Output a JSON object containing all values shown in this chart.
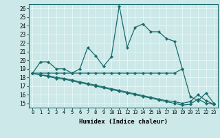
{
  "xlabel": "Humidex (Indice chaleur)",
  "xlim": [
    -0.5,
    23.5
  ],
  "ylim": [
    14.5,
    26.5
  ],
  "yticks": [
    15,
    16,
    17,
    18,
    19,
    20,
    21,
    22,
    23,
    24,
    25,
    26
  ],
  "xticks": [
    0,
    1,
    2,
    3,
    4,
    5,
    6,
    7,
    8,
    9,
    10,
    11,
    12,
    13,
    14,
    15,
    16,
    17,
    18,
    19,
    20,
    21,
    22,
    23
  ],
  "background_color": "#cce8e8",
  "grid_color": "#e8f8f8",
  "line_color": "#1a6b6b",
  "line1_x": [
    0,
    1,
    2,
    3,
    4,
    5,
    6,
    7,
    8,
    9,
    10,
    11,
    12,
    13,
    14,
    15,
    16,
    17,
    18,
    19
  ],
  "line1_y": [
    18.5,
    19.8,
    19.8,
    19.0,
    19.0,
    18.5,
    19.0,
    21.5,
    20.5,
    19.3,
    20.4,
    26.3,
    21.5,
    23.8,
    24.2,
    23.3,
    23.3,
    22.5,
    22.2,
    19.0
  ],
  "line2_x": [
    0,
    1,
    2,
    3,
    4,
    5,
    6,
    7,
    8,
    9,
    10,
    11,
    12,
    13,
    14,
    15,
    16,
    17,
    18,
    19,
    20,
    21,
    22,
    23
  ],
  "line2_y": [
    18.5,
    18.5,
    18.5,
    18.5,
    18.5,
    18.5,
    18.5,
    18.5,
    18.5,
    18.5,
    18.5,
    18.5,
    18.5,
    18.5,
    18.5,
    18.5,
    18.5,
    18.5,
    18.5,
    19.0,
    15.8,
    15.3,
    16.2,
    15.0
  ],
  "line3_x": [
    0,
    1,
    2,
    3,
    4,
    5,
    6,
    7,
    8,
    9,
    10,
    11,
    12,
    13,
    14,
    15,
    16,
    17,
    18,
    19,
    20,
    21,
    22,
    23
  ],
  "line3_y": [
    18.5,
    18.3,
    18.2,
    18.0,
    17.9,
    17.7,
    17.5,
    17.3,
    17.1,
    16.9,
    16.7,
    16.5,
    16.3,
    16.1,
    15.9,
    15.7,
    15.5,
    15.3,
    15.2,
    15.0,
    15.2,
    16.0,
    15.3,
    14.9
  ],
  "line4_x": [
    0,
    1,
    2,
    3,
    4,
    5,
    6,
    7,
    8,
    9,
    10,
    11,
    12,
    13,
    14,
    15,
    16,
    17,
    18,
    19,
    20,
    21,
    22,
    23
  ],
  "line4_y": [
    18.5,
    18.3,
    18.1,
    17.9,
    17.8,
    17.6,
    17.4,
    17.2,
    17.0,
    16.8,
    16.6,
    16.4,
    16.2,
    16.0,
    15.8,
    15.6,
    15.4,
    15.2,
    15.0,
    14.8,
    14.9,
    15.5,
    15.0,
    14.9
  ]
}
